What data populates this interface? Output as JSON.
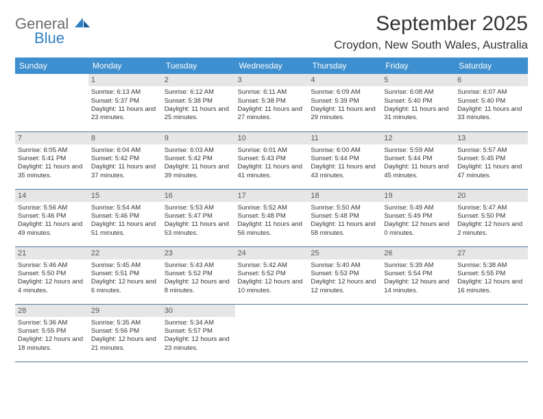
{
  "brand": {
    "part1": "General",
    "part2": "Blue"
  },
  "title": "September 2025",
  "location": "Croydon, New South Wales, Australia",
  "colors": {
    "header_bg": "#3d8fcf",
    "header_text": "#ffffff",
    "daynum_bg": "#e6e6e6",
    "rule": "#4a75a0",
    "text": "#333333",
    "logo_gray": "#6a6a6a",
    "logo_blue": "#2f7fc2"
  },
  "weekdays": [
    "Sunday",
    "Monday",
    "Tuesday",
    "Wednesday",
    "Thursday",
    "Friday",
    "Saturday"
  ],
  "weeks": [
    [
      {
        "n": "",
        "sr": "",
        "ss": "",
        "dl": ""
      },
      {
        "n": "1",
        "sr": "Sunrise: 6:13 AM",
        "ss": "Sunset: 5:37 PM",
        "dl": "Daylight: 11 hours and 23 minutes."
      },
      {
        "n": "2",
        "sr": "Sunrise: 6:12 AM",
        "ss": "Sunset: 5:38 PM",
        "dl": "Daylight: 11 hours and 25 minutes."
      },
      {
        "n": "3",
        "sr": "Sunrise: 6:11 AM",
        "ss": "Sunset: 5:38 PM",
        "dl": "Daylight: 11 hours and 27 minutes."
      },
      {
        "n": "4",
        "sr": "Sunrise: 6:09 AM",
        "ss": "Sunset: 5:39 PM",
        "dl": "Daylight: 11 hours and 29 minutes."
      },
      {
        "n": "5",
        "sr": "Sunrise: 6:08 AM",
        "ss": "Sunset: 5:40 PM",
        "dl": "Daylight: 11 hours and 31 minutes."
      },
      {
        "n": "6",
        "sr": "Sunrise: 6:07 AM",
        "ss": "Sunset: 5:40 PM",
        "dl": "Daylight: 11 hours and 33 minutes."
      }
    ],
    [
      {
        "n": "7",
        "sr": "Sunrise: 6:05 AM",
        "ss": "Sunset: 5:41 PM",
        "dl": "Daylight: 11 hours and 35 minutes."
      },
      {
        "n": "8",
        "sr": "Sunrise: 6:04 AM",
        "ss": "Sunset: 5:42 PM",
        "dl": "Daylight: 11 hours and 37 minutes."
      },
      {
        "n": "9",
        "sr": "Sunrise: 6:03 AM",
        "ss": "Sunset: 5:42 PM",
        "dl": "Daylight: 11 hours and 39 minutes."
      },
      {
        "n": "10",
        "sr": "Sunrise: 6:01 AM",
        "ss": "Sunset: 5:43 PM",
        "dl": "Daylight: 11 hours and 41 minutes."
      },
      {
        "n": "11",
        "sr": "Sunrise: 6:00 AM",
        "ss": "Sunset: 5:44 PM",
        "dl": "Daylight: 11 hours and 43 minutes."
      },
      {
        "n": "12",
        "sr": "Sunrise: 5:59 AM",
        "ss": "Sunset: 5:44 PM",
        "dl": "Daylight: 11 hours and 45 minutes."
      },
      {
        "n": "13",
        "sr": "Sunrise: 5:57 AM",
        "ss": "Sunset: 5:45 PM",
        "dl": "Daylight: 11 hours and 47 minutes."
      }
    ],
    [
      {
        "n": "14",
        "sr": "Sunrise: 5:56 AM",
        "ss": "Sunset: 5:46 PM",
        "dl": "Daylight: 11 hours and 49 minutes."
      },
      {
        "n": "15",
        "sr": "Sunrise: 5:54 AM",
        "ss": "Sunset: 5:46 PM",
        "dl": "Daylight: 11 hours and 51 minutes."
      },
      {
        "n": "16",
        "sr": "Sunrise: 5:53 AM",
        "ss": "Sunset: 5:47 PM",
        "dl": "Daylight: 11 hours and 53 minutes."
      },
      {
        "n": "17",
        "sr": "Sunrise: 5:52 AM",
        "ss": "Sunset: 5:48 PM",
        "dl": "Daylight: 11 hours and 56 minutes."
      },
      {
        "n": "18",
        "sr": "Sunrise: 5:50 AM",
        "ss": "Sunset: 5:48 PM",
        "dl": "Daylight: 11 hours and 58 minutes."
      },
      {
        "n": "19",
        "sr": "Sunrise: 5:49 AM",
        "ss": "Sunset: 5:49 PM",
        "dl": "Daylight: 12 hours and 0 minutes."
      },
      {
        "n": "20",
        "sr": "Sunrise: 5:47 AM",
        "ss": "Sunset: 5:50 PM",
        "dl": "Daylight: 12 hours and 2 minutes."
      }
    ],
    [
      {
        "n": "21",
        "sr": "Sunrise: 5:46 AM",
        "ss": "Sunset: 5:50 PM",
        "dl": "Daylight: 12 hours and 4 minutes."
      },
      {
        "n": "22",
        "sr": "Sunrise: 5:45 AM",
        "ss": "Sunset: 5:51 PM",
        "dl": "Daylight: 12 hours and 6 minutes."
      },
      {
        "n": "23",
        "sr": "Sunrise: 5:43 AM",
        "ss": "Sunset: 5:52 PM",
        "dl": "Daylight: 12 hours and 8 minutes."
      },
      {
        "n": "24",
        "sr": "Sunrise: 5:42 AM",
        "ss": "Sunset: 5:52 PM",
        "dl": "Daylight: 12 hours and 10 minutes."
      },
      {
        "n": "25",
        "sr": "Sunrise: 5:40 AM",
        "ss": "Sunset: 5:53 PM",
        "dl": "Daylight: 12 hours and 12 minutes."
      },
      {
        "n": "26",
        "sr": "Sunrise: 5:39 AM",
        "ss": "Sunset: 5:54 PM",
        "dl": "Daylight: 12 hours and 14 minutes."
      },
      {
        "n": "27",
        "sr": "Sunrise: 5:38 AM",
        "ss": "Sunset: 5:55 PM",
        "dl": "Daylight: 12 hours and 16 minutes."
      }
    ],
    [
      {
        "n": "28",
        "sr": "Sunrise: 5:36 AM",
        "ss": "Sunset: 5:55 PM",
        "dl": "Daylight: 12 hours and 18 minutes."
      },
      {
        "n": "29",
        "sr": "Sunrise: 5:35 AM",
        "ss": "Sunset: 5:56 PM",
        "dl": "Daylight: 12 hours and 21 minutes."
      },
      {
        "n": "30",
        "sr": "Sunrise: 5:34 AM",
        "ss": "Sunset: 5:57 PM",
        "dl": "Daylight: 12 hours and 23 minutes."
      },
      {
        "n": "",
        "sr": "",
        "ss": "",
        "dl": ""
      },
      {
        "n": "",
        "sr": "",
        "ss": "",
        "dl": ""
      },
      {
        "n": "",
        "sr": "",
        "ss": "",
        "dl": ""
      },
      {
        "n": "",
        "sr": "",
        "ss": "",
        "dl": ""
      }
    ]
  ]
}
